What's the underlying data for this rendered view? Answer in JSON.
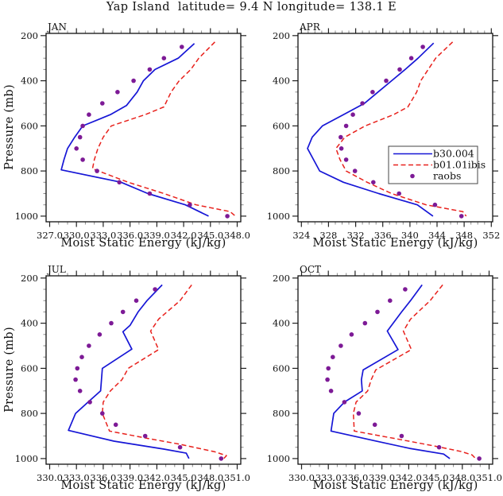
{
  "title": "Yap Island  latitude= 9.4 N longitude= 138.1 E",
  "chart_data": {
    "type": "line",
    "xlabel": "Moist Static Energy (kJ/kg)",
    "ylabel": "Pressure (mb)",
    "grid": false,
    "colors": {
      "b30.004": "#1616d6",
      "b01.01ibis": "#e8211c",
      "raobs": "#7d1a96"
    },
    "legend": {
      "position": "inside APR panel",
      "entries": [
        "b30.004",
        "b01.01ibis",
        "raobs"
      ]
    },
    "y_axis": {
      "ticks_values": [
        200,
        400,
        600,
        800,
        1000
      ],
      "ticks_labels": [
        "200",
        "400",
        "600",
        "800",
        "1000"
      ],
      "minor_step": 50,
      "range": [
        190,
        1025
      ],
      "inverted": true
    },
    "panels": [
      {
        "title": "JAN",
        "xlim": [
          326.6,
          348.4
        ],
        "xticks_values": [
          327,
          330,
          333,
          336,
          339,
          342,
          345,
          348
        ],
        "xticks_labels": [
          "327.0",
          "330.0",
          "333.0",
          "336.0",
          "339.0",
          "342.0",
          "345.0",
          "348.0"
        ],
        "x_minor_step": 1,
        "legend": false,
        "series": [
          {
            "name": "b30.004",
            "type": "line",
            "points": [
              [
                235,
                343.2
              ],
              [
                300,
                341.4
              ],
              [
                350,
                338.8
              ],
              [
                400,
                337.5
              ],
              [
                450,
                336.8
              ],
              [
                510,
                335.6
              ],
              [
                550,
                333.8
              ],
              [
                600,
                330.7
              ],
              [
                650,
                329.8
              ],
              [
                700,
                329.0
              ],
              [
                750,
                328.6
              ],
              [
                795,
                328.3
              ],
              [
                850,
                335.0
              ],
              [
                900,
                338.0
              ],
              [
                950,
                342.2
              ],
              [
                1000,
                344.8
              ]
            ]
          },
          {
            "name": "b01.01ibis",
            "type": "line-dashed",
            "points": [
              [
                228,
                345.5
              ],
              [
                300,
                343.7
              ],
              [
                350,
                342.8
              ],
              [
                400,
                341.5
              ],
              [
                450,
                340.6
              ],
              [
                516,
                339.8
              ],
              [
                550,
                337.7
              ],
              [
                600,
                333.9
              ],
              [
                650,
                333.0
              ],
              [
                700,
                332.4
              ],
              [
                750,
                332.0
              ],
              [
                790,
                331.8
              ],
              [
                850,
                335.8
              ],
              [
                900,
                339.8
              ],
              [
                950,
                343.4
              ],
              [
                980,
                347.2
              ],
              [
                1000,
                347.8
              ]
            ]
          },
          {
            "name": "raobs",
            "type": "scatter",
            "points": [
              [
                250,
                341.8
              ],
              [
                300,
                339.8
              ],
              [
                350,
                338.2
              ],
              [
                400,
                336.4
              ],
              [
                450,
                334.6
              ],
              [
                500,
                332.9
              ],
              [
                550,
                331.4
              ],
              [
                600,
                330.7
              ],
              [
                650,
                330.4
              ],
              [
                700,
                330.0
              ],
              [
                750,
                330.7
              ],
              [
                800,
                332.3
              ],
              [
                850,
                334.8
              ],
              [
                900,
                338.2
              ],
              [
                950,
                342.7
              ],
              [
                1000,
                346.9
              ]
            ]
          }
        ]
      },
      {
        "title": "APR",
        "xlim": [
          323.5,
          352.2
        ],
        "xticks_values": [
          324,
          328,
          332,
          336,
          340,
          344,
          348,
          352
        ],
        "xticks_labels": [
          "324",
          "328",
          "332",
          "336",
          "340",
          "344",
          "348",
          "352"
        ],
        "x_minor_step": 1,
        "legend": true,
        "series": [
          {
            "name": "b30.004",
            "type": "line",
            "points": [
              [
                233,
                343.5
              ],
              [
                300,
                341.2
              ],
              [
                350,
                339.3
              ],
              [
                400,
                337.3
              ],
              [
                450,
                335.3
              ],
              [
                500,
                333.3
              ],
              [
                550,
                330.2
              ],
              [
                600,
                327.1
              ],
              [
                650,
                325.6
              ],
              [
                700,
                324.9
              ],
              [
                750,
                325.8
              ],
              [
                800,
                326.7
              ],
              [
                850,
                330.2
              ],
              [
                900,
                335.4
              ],
              [
                950,
                341.1
              ],
              [
                1000,
                343.4
              ]
            ]
          },
          {
            "name": "b01.01ibis",
            "type": "line-dashed",
            "points": [
              [
                228,
                346.3
              ],
              [
                300,
                343.8
              ],
              [
                400,
                341.6
              ],
              [
                450,
                341.0
              ],
              [
                516,
                339.7
              ],
              [
                550,
                337.6
              ],
              [
                600,
                333.4
              ],
              [
                650,
                330.4
              ],
              [
                700,
                329.1
              ],
              [
                750,
                329.7
              ],
              [
                800,
                330.6
              ],
              [
                850,
                333.7
              ],
              [
                900,
                337.3
              ],
              [
                950,
                342.4
              ],
              [
                980,
                347.8
              ],
              [
                1000,
                348.3
              ]
            ]
          },
          {
            "name": "raobs",
            "type": "scatter",
            "points": [
              [
                250,
                341.9
              ],
              [
                300,
                340.2
              ],
              [
                350,
                338.5
              ],
              [
                400,
                336.5
              ],
              [
                450,
                334.5
              ],
              [
                500,
                333.0
              ],
              [
                550,
                331.6
              ],
              [
                600,
                330.6
              ],
              [
                650,
                329.8
              ],
              [
                700,
                329.9
              ],
              [
                750,
                330.6
              ],
              [
                800,
                331.9
              ],
              [
                850,
                334.6
              ],
              [
                900,
                338.4
              ],
              [
                950,
                343.7
              ],
              [
                1000,
                347.6
              ]
            ]
          }
        ]
      },
      {
        "title": "JUL",
        "xlim": [
          329.6,
          351.4
        ],
        "xticks_values": [
          330,
          333,
          336,
          339,
          342,
          345,
          348,
          351
        ],
        "xticks_labels": [
          "330.0",
          "333.0",
          "336.0",
          "339.0",
          "342.0",
          "345.0",
          "348.0",
          "351.0"
        ],
        "x_minor_step": 1,
        "legend": false,
        "series": [
          {
            "name": "b30.004",
            "type": "line",
            "points": [
              [
                230,
                342.6
              ],
              [
                300,
                340.9
              ],
              [
                350,
                339.9
              ],
              [
                410,
                339.0
              ],
              [
                438,
                338.2
              ],
              [
                515,
                339.2
              ],
              [
                600,
                335.9
              ],
              [
                650,
                335.8
              ],
              [
                700,
                335.7
              ],
              [
                750,
                334.3
              ],
              [
                800,
                332.9
              ],
              [
                875,
                332.1
              ],
              [
                923,
                337.2
              ],
              [
                958,
                342.8
              ],
              [
                976,
                345.3
              ],
              [
                1000,
                345.6
              ]
            ]
          },
          {
            "name": "b01.01ibis",
            "type": "line-dashed",
            "points": [
              [
                230,
                345.9
              ],
              [
                300,
                344.6
              ],
              [
                382,
                342.2
              ],
              [
                435,
                341.3
              ],
              [
                517,
                342.2
              ],
              [
                600,
                338.8
              ],
              [
                650,
                338.1
              ],
              [
                700,
                336.8
              ],
              [
                750,
                336.0
              ],
              [
                800,
                335.9
              ],
              [
                878,
                336.7
              ],
              [
                911,
                341.0
              ],
              [
                936,
                344.5
              ],
              [
                970,
                348.5
              ],
              [
                987,
                349.8
              ],
              [
                1000,
                349.5
              ]
            ]
          },
          {
            "name": "raobs",
            "type": "scatter",
            "points": [
              [
                250,
                341.8
              ],
              [
                300,
                339.7
              ],
              [
                350,
                338.2
              ],
              [
                400,
                336.9
              ],
              [
                450,
                335.6
              ],
              [
                500,
                334.4
              ],
              [
                550,
                333.6
              ],
              [
                600,
                333.1
              ],
              [
                650,
                332.9
              ],
              [
                700,
                333.4
              ],
              [
                750,
                334.5
              ],
              [
                800,
                335.9
              ],
              [
                850,
                337.4
              ],
              [
                900,
                340.7
              ],
              [
                950,
                344.6
              ],
              [
                1000,
                349.2
              ]
            ]
          }
        ]
      },
      {
        "title": "OCT",
        "xlim": [
          329.6,
          351.4
        ],
        "xticks_values": [
          330,
          333,
          336,
          339,
          342,
          345,
          348,
          351
        ],
        "xticks_labels": [
          "330.0",
          "333.0",
          "336.0",
          "339.0",
          "342.0",
          "345.0",
          "348.0",
          "351.0"
        ],
        "x_minor_step": 1,
        "legend": false,
        "series": [
          {
            "name": "b30.004",
            "type": "line",
            "points": [
              [
                230,
                343.5
              ],
              [
                300,
                342.2
              ],
              [
                350,
                341.2
              ],
              [
                435,
                339.6
              ],
              [
                517,
                340.8
              ],
              [
                607,
                336.9
              ],
              [
                650,
                336.7
              ],
              [
                700,
                336.8
              ],
              [
                750,
                334.8
              ],
              [
                800,
                333.6
              ],
              [
                878,
                333.3
              ],
              [
                922,
                338.3
              ],
              [
                955,
                342.1
              ],
              [
                980,
                345.9
              ],
              [
                1000,
                346.6
              ]
            ]
          },
          {
            "name": "b01.01ibis",
            "type": "line-dashed",
            "points": [
              [
                230,
                345.8
              ],
              [
                300,
                344.4
              ],
              [
                382,
                342.2
              ],
              [
                435,
                341.4
              ],
              [
                517,
                342.3
              ],
              [
                607,
                338.3
              ],
              [
                650,
                337.8
              ],
              [
                700,
                337.4
              ],
              [
                750,
                336.1
              ],
              [
                800,
                335.8
              ],
              [
                878,
                335.9
              ],
              [
                910,
                340.3
              ],
              [
                943,
                344.7
              ],
              [
                969,
                347.9
              ],
              [
                984,
                349.1
              ],
              [
                1000,
                349.5
              ]
            ]
          },
          {
            "name": "raobs",
            "type": "scatter",
            "points": [
              [
                250,
                341.6
              ],
              [
                300,
                339.9
              ],
              [
                350,
                338.5
              ],
              [
                400,
                337.1
              ],
              [
                450,
                335.6
              ],
              [
                500,
                334.4
              ],
              [
                550,
                333.5
              ],
              [
                600,
                333.0
              ],
              [
                650,
                332.9
              ],
              [
                700,
                333.3
              ],
              [
                750,
                334.8
              ],
              [
                800,
                336.4
              ],
              [
                850,
                338.2
              ],
              [
                900,
                341.2
              ],
              [
                950,
                345.4
              ],
              [
                1000,
                349.9
              ]
            ]
          }
        ]
      }
    ]
  }
}
